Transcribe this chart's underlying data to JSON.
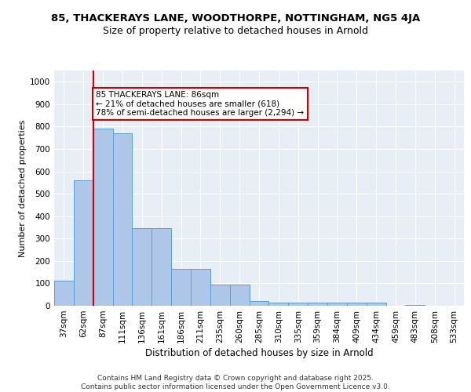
{
  "title1": "85, THACKERAYS LANE, WOODTHORPE, NOTTINGHAM, NG5 4JA",
  "title2": "Size of property relative to detached houses in Arnold",
  "xlabel": "Distribution of detached houses by size in Arnold",
  "ylabel": "Number of detached properties",
  "categories": [
    "37sqm",
    "62sqm",
    "87sqm",
    "111sqm",
    "136sqm",
    "161sqm",
    "186sqm",
    "211sqm",
    "235sqm",
    "260sqm",
    "285sqm",
    "310sqm",
    "335sqm",
    "359sqm",
    "384sqm",
    "409sqm",
    "434sqm",
    "459sqm",
    "483sqm",
    "508sqm",
    "533sqm"
  ],
  "values": [
    113,
    560,
    790,
    770,
    345,
    345,
    165,
    163,
    95,
    95,
    20,
    15,
    13,
    13,
    13,
    13,
    13,
    0,
    5,
    0,
    0
  ],
  "bar_color": "#aec6e8",
  "bar_edge_color": "#5a9fd4",
  "vline_color": "#cc0000",
  "annotation_text": "85 THACKERAYS LANE: 86sqm\n← 21% of detached houses are smaller (618)\n78% of semi-detached houses are larger (2,294) →",
  "annotation_box_color": "#ffffff",
  "annotation_box_edge_color": "#cc0000",
  "ylim": [
    0,
    1050
  ],
  "yticks": [
    0,
    100,
    200,
    300,
    400,
    500,
    600,
    700,
    800,
    900,
    1000
  ],
  "background_color": "#e8eef5",
  "footer_text": "Contains HM Land Registry data © Crown copyright and database right 2025.\nContains public sector information licensed under the Open Government Licence v3.0.",
  "title1_fontsize": 9.5,
  "title2_fontsize": 9,
  "xlabel_fontsize": 8.5,
  "ylabel_fontsize": 8,
  "tick_fontsize": 7.5,
  "footer_fontsize": 6.5
}
